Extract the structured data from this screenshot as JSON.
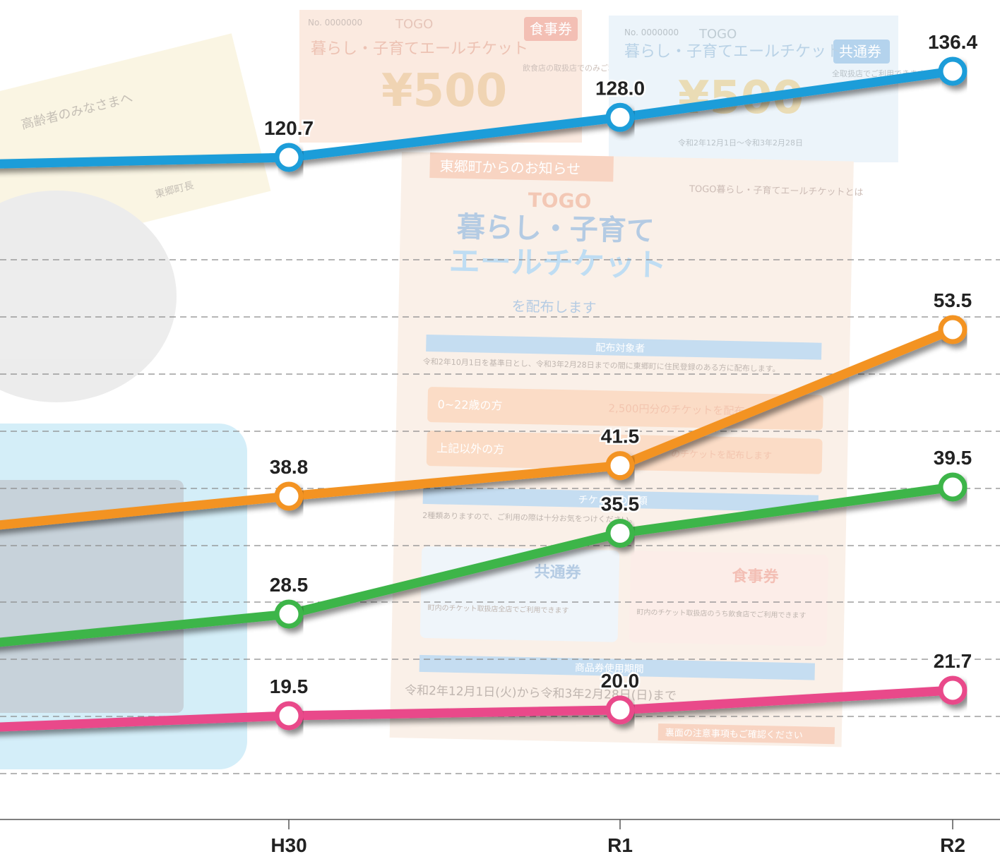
{
  "chart_data": {
    "type": "line",
    "categories": [
      "",
      "H30",
      "R1",
      "R2"
    ],
    "series": [
      {
        "color": "#1b9dd9",
        "values": [
          null,
          120.7,
          128.0,
          136.4
        ],
        "labels": [
          "",
          "120.7",
          "128.0",
          "136.4"
        ]
      },
      {
        "color": "#f39320",
        "values": [
          null,
          38.8,
          41.5,
          53.5
        ],
        "labels": [
          "",
          "38.8",
          "41.5",
          "53.5"
        ]
      },
      {
        "color": "#3db54a",
        "values": [
          null,
          28.5,
          35.5,
          39.5
        ],
        "labels": [
          "",
          "28.5",
          "35.5",
          "39.5"
        ]
      },
      {
        "color": "#e94a8a",
        "values": [
          null,
          19.5,
          20.0,
          21.7
        ],
        "labels": [
          "",
          "19.5",
          "20.0",
          "21.7"
        ]
      }
    ],
    "leading_points": [
      {
        "color": "#1b9dd9",
        "value": 119.5
      },
      {
        "color": "#f39320",
        "value": 36.2
      },
      {
        "color": "#3db54a",
        "value": 26.0
      },
      {
        "color": "#e94a8a",
        "value": 18.5
      }
    ],
    "grid": true,
    "legend": "none"
  },
  "backdrop": {
    "ticket_food": {
      "number": "No. 0000000",
      "brand": "TOGO",
      "title": "暮らし・子育てエールチケット",
      "kind": "食事券",
      "amount": "¥500",
      "note": "飲食店の取扱店でのみご利用できます。"
    },
    "ticket_common": {
      "number": "No. 0000000",
      "brand": "TOGO",
      "title": "暮らし・子育てエールチケット",
      "kind": "共通券",
      "amount": "¥500",
      "note": "全取扱店でご利用できます。",
      "period": "令和2年12月1日～令和3年2月28日"
    },
    "flyer": {
      "header": "東郷町からのお知らせ",
      "brand": "TOGO",
      "title_line1": "暮らし・子育て",
      "title_line2": "エールチケット",
      "subtitle": "を配布します",
      "about_title": "TOGO暮らし・子育てエールチケットとは",
      "section_target": "配布対象者",
      "target_text": "令和2年10月1日を基準日とし、令和3年2月28日までの間に東郷町に住民登録のある方に配布します。",
      "group1": "0~22歳の方",
      "group1_amount": "2,500円分のチケットを配布",
      "group2": "上記以外の方",
      "group2_amount": "のチケットを配布します",
      "section_types": "チケットの種類",
      "types_text": "2種類ありますので、ご利用の際は十分お気をつけください。",
      "common_label": "共通券",
      "common_text": "町内のチケット取扱店全店でご利用できます",
      "food_label": "食事券",
      "food_text": "町内のチケット取扱店のうち飲食店でご利用できます",
      "section_period": "商品券使用期間",
      "period_text": "令和2年12月1日(火)から令和3年2月28日(日)まで",
      "footer": "裏面の注意事項もご確認ください"
    },
    "letter": {
      "greeting": "高齢者のみなさまへ",
      "signature": "東郷町長"
    }
  }
}
